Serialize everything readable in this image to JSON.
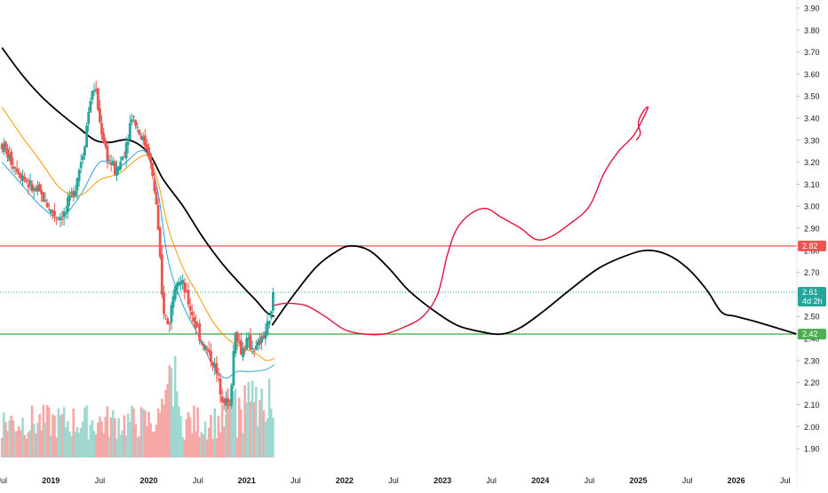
{
  "chart_data": {
    "type": "candlestick",
    "symbol_timeframe": "weekly",
    "y_axis": {
      "position": "right",
      "ticks": [
        "3.90",
        "3.80",
        "3.70",
        "3.60",
        "3.50",
        "3.40",
        "3.30",
        "3.20",
        "3.10",
        "3.00",
        "2.90",
        "2.80",
        "2.70",
        "2.60",
        "2.50",
        "2.40",
        "2.30",
        "2.20",
        "2.10",
        "2.00",
        "1.90"
      ],
      "tick_values": [
        3.9,
        3.8,
        3.7,
        3.6,
        3.5,
        3.4,
        3.3,
        3.2,
        3.1,
        3.0,
        2.9,
        2.8,
        2.7,
        2.6,
        2.5,
        2.4,
        2.3,
        2.2,
        2.1,
        2.0,
        1.9
      ],
      "range": [
        1.86,
        3.92
      ]
    },
    "x_axis": {
      "ticks": [
        "Jul",
        "2019",
        "Jul",
        "2020",
        "Jul",
        "2021",
        "Jul",
        "2022",
        "Jul",
        "2023",
        "Jul",
        "2024",
        "Jul",
        "2025",
        "Jul",
        "2026",
        "Jul"
      ],
      "tick_dates": [
        2018.5,
        2019.0,
        2019.5,
        2020.0,
        2020.5,
        2021.0,
        2021.5,
        2022.0,
        2022.5,
        2023.0,
        2023.5,
        2024.0,
        2024.5,
        2025.0,
        2025.5,
        2026.0,
        2026.5
      ],
      "range": [
        2018.48,
        2026.62
      ]
    },
    "price_labels": {
      "current": {
        "value": "2.61",
        "countdown": "4d 2h",
        "color": "#26a69a",
        "price": 2.61
      },
      "red_line": {
        "value": "2.82",
        "color": "#ef5350",
        "price": 2.82
      },
      "green_line": {
        "value": "2.42",
        "color": "#26a69a",
        "price": 2.42
      }
    },
    "horizontal_lines": [
      {
        "price": 2.82,
        "color": "#ef5350"
      },
      {
        "price": 2.42,
        "color": "#4caf50"
      }
    ],
    "colors": {
      "up": "#26a69a",
      "down": "#ef5350",
      "volume_up": "#9fd8d1",
      "volume_down": "#f5a8a6",
      "ma_fast": "#2aa0d8",
      "ma_mid": "#ff9800",
      "ma_slow": "#000000",
      "drawing_red": "#e0143c",
      "drawing_black": "#000000"
    },
    "price_series": [
      {
        "date": 2018.5,
        "close": 3.28
      },
      {
        "date": 2018.6,
        "close": 3.2
      },
      {
        "date": 2018.7,
        "close": 3.15
      },
      {
        "date": 2018.8,
        "close": 3.08
      },
      {
        "date": 2018.9,
        "close": 3.05
      },
      {
        "date": 2019.0,
        "close": 2.98
      },
      {
        "date": 2019.08,
        "close": 2.95
      },
      {
        "date": 2019.15,
        "close": 2.97
      },
      {
        "date": 2019.25,
        "close": 3.1
      },
      {
        "date": 2019.33,
        "close": 3.25
      },
      {
        "date": 2019.4,
        "close": 3.48
      },
      {
        "date": 2019.45,
        "close": 3.55
      },
      {
        "date": 2019.5,
        "close": 3.38
      },
      {
        "date": 2019.58,
        "close": 3.22
      },
      {
        "date": 2019.67,
        "close": 3.15
      },
      {
        "date": 2019.75,
        "close": 3.25
      },
      {
        "date": 2019.83,
        "close": 3.42
      },
      {
        "date": 2019.92,
        "close": 3.32
      },
      {
        "date": 2020.0,
        "close": 3.25
      },
      {
        "date": 2020.08,
        "close": 3.0
      },
      {
        "date": 2020.14,
        "close": 2.55
      },
      {
        "date": 2020.2,
        "close": 2.45
      },
      {
        "date": 2020.28,
        "close": 2.7
      },
      {
        "date": 2020.36,
        "close": 2.62
      },
      {
        "date": 2020.45,
        "close": 2.5
      },
      {
        "date": 2020.55,
        "close": 2.38
      },
      {
        "date": 2020.65,
        "close": 2.3
      },
      {
        "date": 2020.75,
        "close": 2.15
      },
      {
        "date": 2020.83,
        "close": 2.08
      },
      {
        "date": 2020.88,
        "close": 2.45
      },
      {
        "date": 2020.94,
        "close": 2.34
      },
      {
        "date": 2021.0,
        "close": 2.38
      },
      {
        "date": 2021.1,
        "close": 2.35
      },
      {
        "date": 2021.18,
        "close": 2.42
      },
      {
        "date": 2021.24,
        "close": 2.48
      },
      {
        "date": 2021.28,
        "close": 2.61
      }
    ],
    "moving_averages": [
      {
        "name": "",
        "color": "#2aa0d8",
        "points": [
          [
            2018.5,
            3.2
          ],
          [
            2018.7,
            3.1
          ],
          [
            2018.9,
            3.0
          ],
          [
            2019.1,
            2.95
          ],
          [
            2019.3,
            3.05
          ],
          [
            2019.5,
            3.2
          ],
          [
            2019.7,
            3.18
          ],
          [
            2019.9,
            3.25
          ],
          [
            2020.0,
            3.22
          ],
          [
            2020.1,
            3.05
          ],
          [
            2020.2,
            2.75
          ],
          [
            2020.35,
            2.55
          ],
          [
            2020.5,
            2.42
          ],
          [
            2020.65,
            2.28
          ],
          [
            2020.78,
            2.22
          ],
          [
            2020.9,
            2.25
          ],
          [
            2021.05,
            2.25
          ],
          [
            2021.2,
            2.26
          ],
          [
            2021.28,
            2.28
          ]
        ]
      },
      {
        "name": "",
        "color": "#ff9800",
        "points": [
          [
            2018.5,
            3.45
          ],
          [
            2018.7,
            3.32
          ],
          [
            2018.9,
            3.2
          ],
          [
            2019.1,
            3.08
          ],
          [
            2019.3,
            3.05
          ],
          [
            2019.5,
            3.12
          ],
          [
            2019.7,
            3.15
          ],
          [
            2019.9,
            3.22
          ],
          [
            2020.0,
            3.22
          ],
          [
            2020.1,
            3.1
          ],
          [
            2020.2,
            2.9
          ],
          [
            2020.35,
            2.72
          ],
          [
            2020.5,
            2.6
          ],
          [
            2020.65,
            2.48
          ],
          [
            2020.8,
            2.4
          ],
          [
            2020.95,
            2.36
          ],
          [
            2021.1,
            2.33
          ],
          [
            2021.2,
            2.3
          ],
          [
            2021.28,
            2.31
          ]
        ]
      },
      {
        "name": "",
        "color": "#000000",
        "points": [
          [
            2018.5,
            3.72
          ],
          [
            2018.7,
            3.6
          ],
          [
            2018.9,
            3.5
          ],
          [
            2019.1,
            3.42
          ],
          [
            2019.3,
            3.35
          ],
          [
            2019.45,
            3.3
          ],
          [
            2019.6,
            3.29
          ],
          [
            2019.8,
            3.3
          ],
          [
            2020.0,
            3.24
          ],
          [
            2020.15,
            3.12
          ],
          [
            2020.35,
            3.0
          ],
          [
            2020.55,
            2.86
          ],
          [
            2020.75,
            2.74
          ],
          [
            2020.95,
            2.64
          ],
          [
            2021.1,
            2.57
          ],
          [
            2021.2,
            2.52
          ],
          [
            2021.28,
            2.5
          ]
        ]
      }
    ],
    "drawings": {
      "black_wave": [
        [
          2021.26,
          2.46
        ],
        [
          2021.45,
          2.58
        ],
        [
          2021.7,
          2.72
        ],
        [
          2021.9,
          2.79
        ],
        [
          2022.05,
          2.82
        ],
        [
          2022.25,
          2.8
        ],
        [
          2022.45,
          2.72
        ],
        [
          2022.65,
          2.62
        ],
        [
          2022.9,
          2.53
        ],
        [
          2023.15,
          2.46
        ],
        [
          2023.4,
          2.43
        ],
        [
          2023.6,
          2.42
        ],
        [
          2023.8,
          2.45
        ],
        [
          2024.05,
          2.53
        ],
        [
          2024.3,
          2.62
        ],
        [
          2024.6,
          2.72
        ],
        [
          2024.9,
          2.78
        ],
        [
          2025.1,
          2.8
        ],
        [
          2025.3,
          2.78
        ],
        [
          2025.5,
          2.72
        ],
        [
          2025.7,
          2.62
        ],
        [
          2025.85,
          2.52
        ],
        [
          2026.0,
          2.5
        ],
        [
          2026.25,
          2.47
        ],
        [
          2026.62,
          2.42
        ]
      ],
      "red_path": [
        [
          2021.28,
          2.55
        ],
        [
          2021.4,
          2.56
        ],
        [
          2021.6,
          2.55
        ],
        [
          2021.8,
          2.5
        ],
        [
          2022.0,
          2.44
        ],
        [
          2022.2,
          2.42
        ],
        [
          2022.4,
          2.42
        ],
        [
          2022.6,
          2.45
        ],
        [
          2022.8,
          2.5
        ],
        [
          2022.95,
          2.6
        ],
        [
          2023.05,
          2.78
        ],
        [
          2023.15,
          2.9
        ],
        [
          2023.3,
          2.97
        ],
        [
          2023.45,
          2.99
        ],
        [
          2023.6,
          2.95
        ],
        [
          2023.8,
          2.9
        ],
        [
          2023.95,
          2.85
        ],
        [
          2024.1,
          2.86
        ],
        [
          2024.3,
          2.92
        ],
        [
          2024.5,
          3.0
        ],
        [
          2024.65,
          3.15
        ],
        [
          2024.8,
          3.25
        ],
        [
          2024.95,
          3.32
        ],
        [
          2025.05,
          3.4
        ],
        [
          2025.1,
          3.45
        ],
        [
          2025.05,
          3.43
        ],
        [
          2025.0,
          3.38
        ],
        [
          2025.02,
          3.33
        ],
        [
          2024.98,
          3.3
        ]
      ]
    }
  }
}
